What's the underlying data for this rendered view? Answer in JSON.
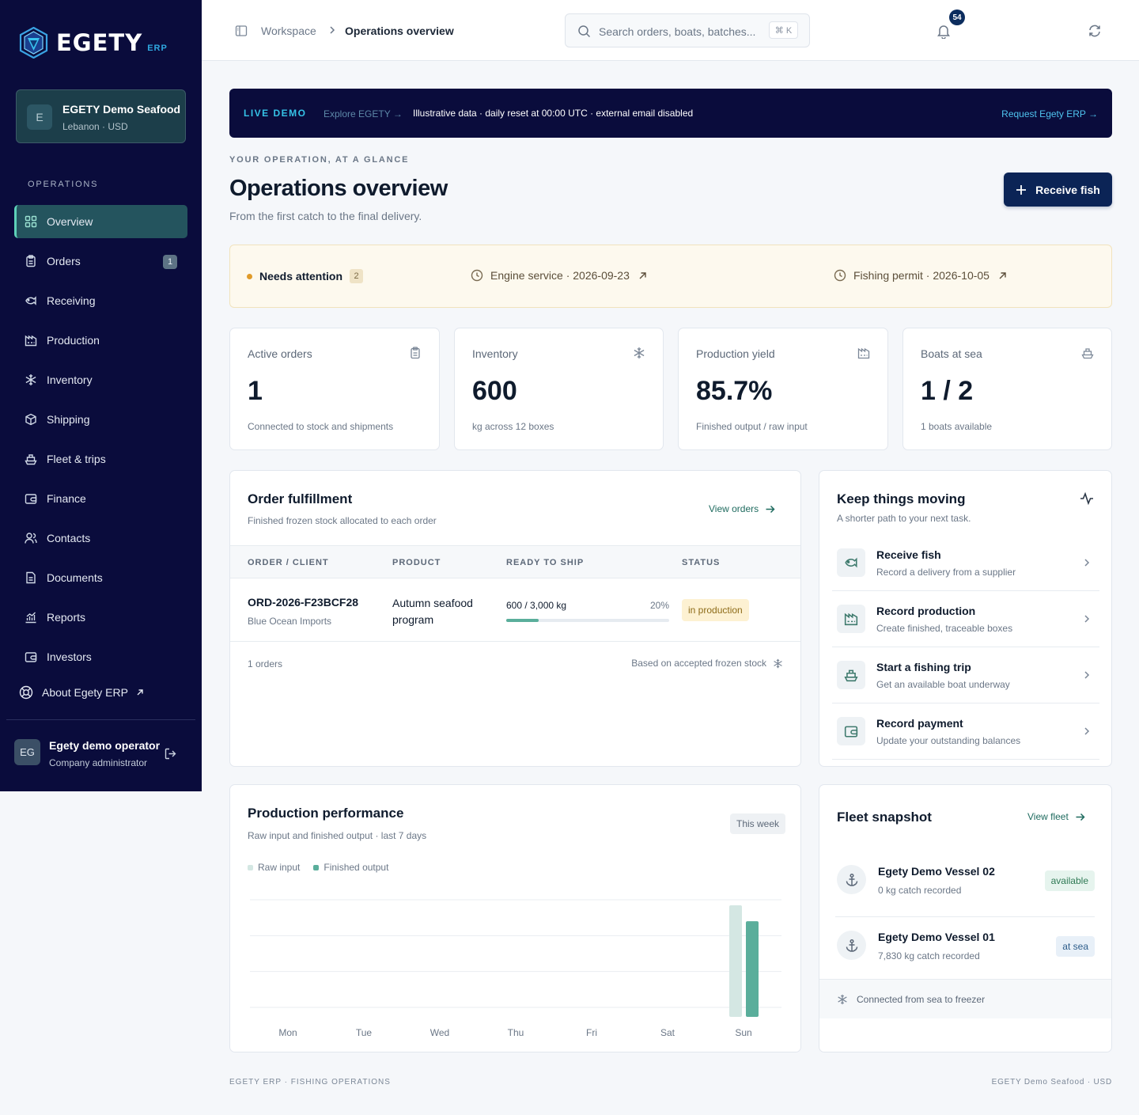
{
  "app": {
    "brand": "EGETY",
    "brand_sub": "ERP"
  },
  "company": {
    "initial": "E",
    "name": "EGETY Demo Seafood",
    "subtitle": "Lebanon · USD"
  },
  "sidebar": {
    "section_title": "OPERATIONS",
    "items": [
      {
        "label": "Overview",
        "icon": "grid-icon",
        "active": true
      },
      {
        "label": "Orders",
        "icon": "clipboard-icon",
        "badge": "1"
      },
      {
        "label": "Receiving",
        "icon": "fish-icon"
      },
      {
        "label": "Production",
        "icon": "factory-icon"
      },
      {
        "label": "Inventory",
        "icon": "snowflake-icon"
      },
      {
        "label": "Shipping",
        "icon": "package-icon"
      },
      {
        "label": "Fleet & trips",
        "icon": "ship-icon"
      },
      {
        "label": "Finance",
        "icon": "wallet-icon"
      },
      {
        "label": "Contacts",
        "icon": "users-icon"
      },
      {
        "label": "Documents",
        "icon": "file-icon"
      },
      {
        "label": "Reports",
        "icon": "chart-icon"
      },
      {
        "label": "Investors",
        "icon": "wallet-icon"
      }
    ],
    "about": "About Egety ERP"
  },
  "user": {
    "initials": "EG",
    "name": "Egety demo operator",
    "role": "Company administrator"
  },
  "topbar": {
    "breadcrumb_root": "Workspace",
    "breadcrumb_current": "Operations overview",
    "search_placeholder": "Search orders, boats, batches...",
    "search_shortcut": "⌘ K",
    "notifications_count": "54"
  },
  "banner": {
    "live_label": "LIVE DEMO",
    "explore_label": "Explore EGETY →",
    "info": "Illustrative data · daily reset at 00:00 UTC · external email disabled",
    "request_label": "Request Egety ERP →"
  },
  "page": {
    "eyebrow": "YOUR OPERATION, AT A GLANCE",
    "title": "Operations overview",
    "subtitle": "From the first catch to the final delivery.",
    "primary_action": "Receive fish"
  },
  "attention": {
    "label": "Needs attention",
    "count": "2",
    "items": [
      "Engine service · 2026-09-23",
      "Fishing permit · 2026-10-05"
    ]
  },
  "kpis": [
    {
      "label": "Active orders",
      "value": "1",
      "sub": "Connected to stock and shipments",
      "icon": "clipboard-icon"
    },
    {
      "label": "Inventory",
      "value": "600",
      "sub": "kg across 12 boxes",
      "icon": "snowflake-icon"
    },
    {
      "label": "Production yield",
      "value": "85.7%",
      "sub": "Finished output / raw input",
      "icon": "factory-icon"
    },
    {
      "label": "Boats at sea",
      "value": "1 / 2",
      "sub": "1 boats available",
      "icon": "ship-icon"
    }
  ],
  "fulfillment": {
    "title": "Order fulfillment",
    "subtitle": "Finished frozen stock allocated to each order",
    "link": "View orders",
    "columns": [
      "ORDER / CLIENT",
      "PRODUCT",
      "READY TO SHIP",
      "STATUS"
    ],
    "rows": [
      {
        "order_id": "ORD-2026-F23BCF28",
        "client": "Blue Ocean Imports",
        "product": "Autumn seafood program",
        "ready": "600 / 3,000 kg",
        "percent": "20%",
        "progress": 0.2,
        "status": "in production"
      }
    ],
    "footer_count": "1 orders",
    "footer_note": "Based on accepted frozen stock"
  },
  "quick_actions": {
    "title": "Keep things moving",
    "subtitle": "A shorter path to your next task.",
    "items": [
      {
        "title": "Receive fish",
        "sub": "Record a delivery from a supplier",
        "icon": "fish-icon"
      },
      {
        "title": "Record production",
        "sub": "Create finished, traceable boxes",
        "icon": "factory-icon"
      },
      {
        "title": "Start a fishing trip",
        "sub": "Get an available boat underway",
        "icon": "ship-icon"
      },
      {
        "title": "Record payment",
        "sub": "Update your outstanding balances",
        "icon": "wallet-icon"
      }
    ]
  },
  "production": {
    "title": "Production performance",
    "subtitle": "Raw input and finished output · last 7 days",
    "period": "This week",
    "chart_data": {
      "type": "bar",
      "categories": [
        "Mon",
        "Tue",
        "Wed",
        "Thu",
        "Fri",
        "Sat",
        "Sun"
      ],
      "series": [
        {
          "name": "Raw input",
          "values": [
            0,
            0,
            0,
            0,
            0,
            0,
            700
          ],
          "color": "#d4e7e3"
        },
        {
          "name": "Finished output",
          "values": [
            0,
            0,
            0,
            0,
            0,
            0,
            600
          ],
          "color": "#5aae9b"
        }
      ],
      "ylim": [
        0,
        700
      ],
      "grid": true,
      "legend": "top-left"
    }
  },
  "fleet": {
    "title": "Fleet snapshot",
    "link": "View fleet",
    "vessels": [
      {
        "name": "Egety Demo Vessel 02",
        "sub": "0 kg catch recorded",
        "status": "available",
        "status_color": "#e6f4ee",
        "status_text_color": "#2f7a55"
      },
      {
        "name": "Egety Demo Vessel 01",
        "sub": "7,830 kg catch recorded",
        "status": "at sea",
        "status_color": "#e8f0f8",
        "status_text_color": "#2d5d8a"
      }
    ],
    "footer": "Connected from sea to freezer"
  },
  "footer": {
    "left": "EGETY ERP · FISHING OPERATIONS",
    "right": "EGETY Demo Seafood · USD"
  }
}
